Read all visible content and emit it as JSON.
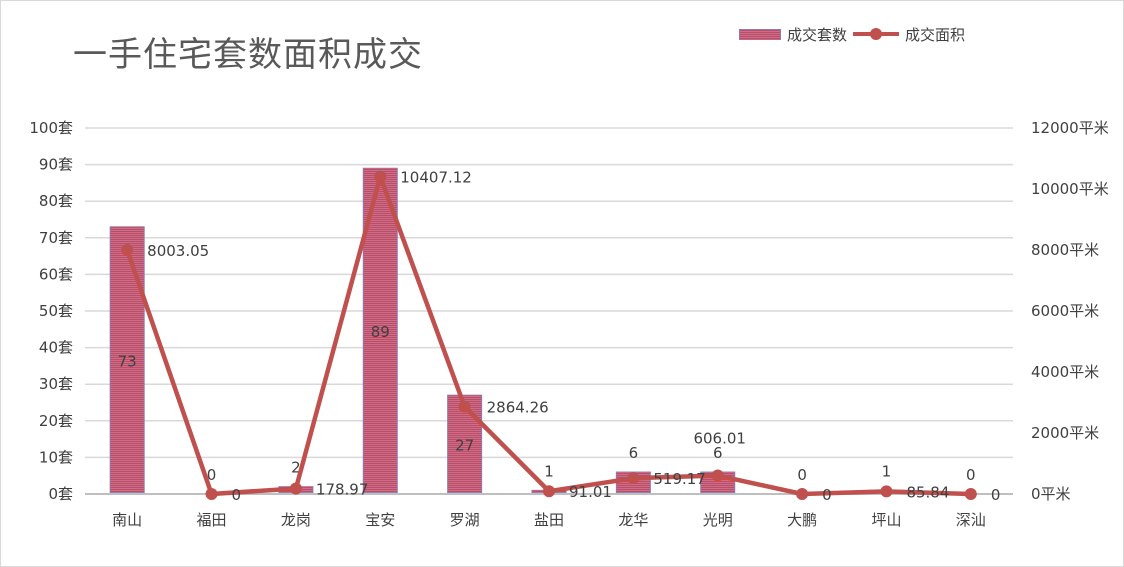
{
  "chart_data": {
    "type": "bar+line",
    "title": "一手住宅套数面积成交",
    "categories": [
      "南山",
      "福田",
      "龙岗",
      "宝安",
      "罗湖",
      "盐田",
      "龙华",
      "光明",
      "大鹏",
      "坪山",
      "深汕"
    ],
    "series": [
      {
        "name": "成交套数",
        "type": "bar",
        "axis": "left",
        "values": [
          73,
          0,
          2,
          89,
          27,
          1,
          6,
          6,
          0,
          1,
          0
        ],
        "value_labels": [
          "73",
          "0",
          "2",
          "89",
          "27",
          "1",
          "6",
          "6",
          "0",
          "1",
          "0"
        ],
        "color": "#ee3b3b",
        "stripe_color": "#9a7fb5"
      },
      {
        "name": "成交面积",
        "type": "line",
        "axis": "right",
        "values": [
          8003.05,
          0,
          178.97,
          10407.12,
          2864.26,
          91.01,
          519.17,
          606.01,
          0,
          85.84,
          0
        ],
        "value_labels": [
          "8003.05",
          "0",
          "178.97",
          "10407.12",
          "2864.26",
          "91.01",
          "519.17",
          "606.01",
          "0",
          "85.84",
          "0"
        ],
        "color": "#c0504d"
      }
    ],
    "y_left": {
      "ylim": [
        0,
        100
      ],
      "ticks": [
        0,
        10,
        20,
        30,
        40,
        50,
        60,
        70,
        80,
        90,
        100
      ],
      "tick_labels": [
        "0套",
        "10套",
        "20套",
        "30套",
        "40套",
        "50套",
        "60套",
        "70套",
        "80套",
        "90套",
        "100套"
      ]
    },
    "y_right": {
      "ylim": [
        0,
        12000
      ],
      "ticks": [
        0,
        2000,
        4000,
        6000,
        8000,
        10000,
        12000
      ],
      "tick_labels": [
        "0平米",
        "2000平米",
        "4000平米",
        "6000平米",
        "8000平米",
        "10000平米",
        "12000平米"
      ]
    },
    "grid": true,
    "legend_position": "top-right",
    "grid_color": "#d9d9d9",
    "axis_color": "#bfbfbf"
  }
}
